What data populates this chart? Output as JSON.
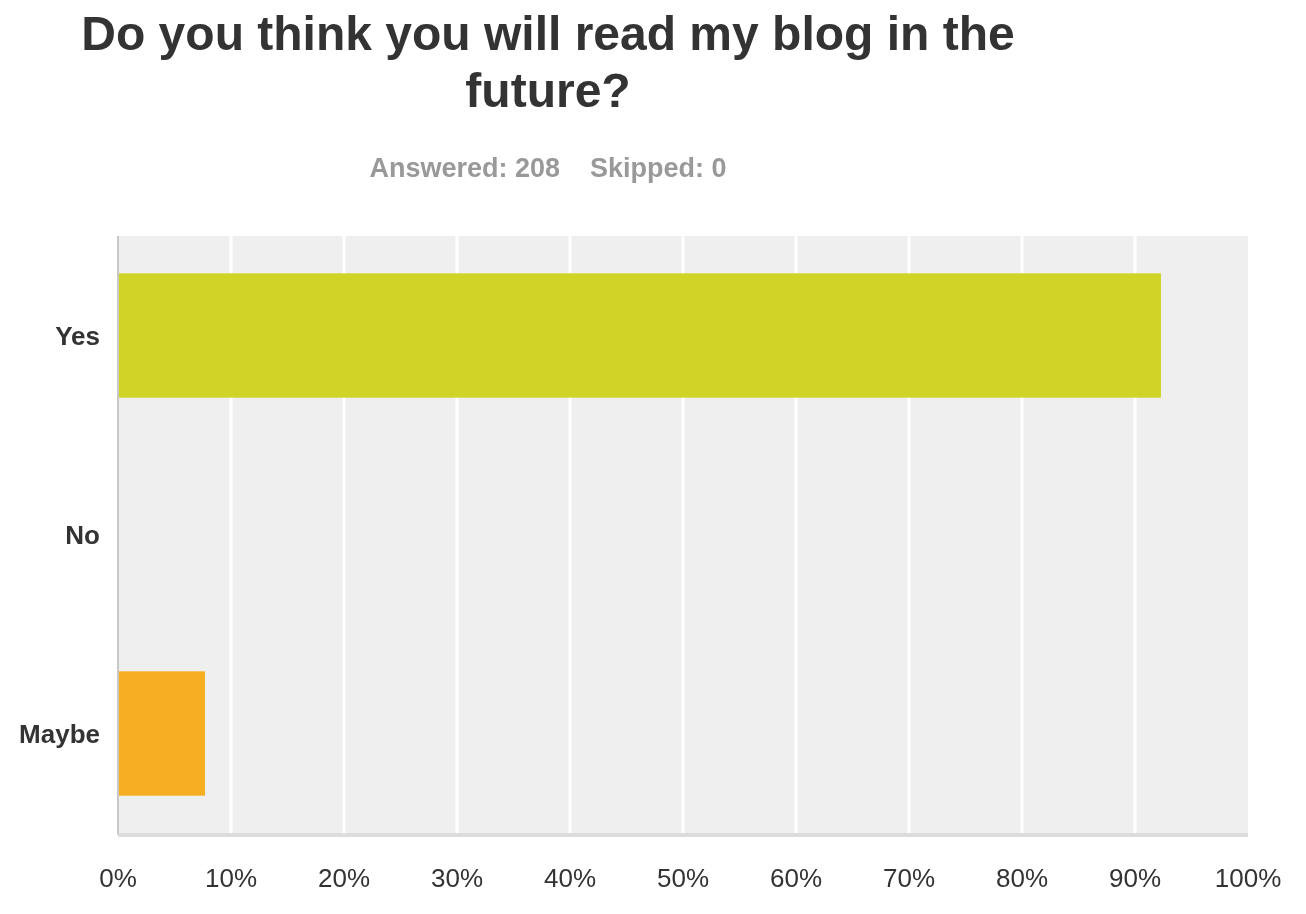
{
  "chart_data": {
    "type": "bar",
    "orientation": "horizontal",
    "title": "Do you think you will read my blog in the future?",
    "subtitle": "Answered: 208    Skipped: 0",
    "categories": [
      "Yes",
      "No",
      "Maybe"
    ],
    "values": [
      92.3,
      0,
      7.7
    ],
    "colors": [
      "#cfd427",
      null,
      "#f6af20"
    ],
    "xlim": [
      0,
      100
    ],
    "xticks": [
      {
        "value": 0,
        "label": "0%"
      },
      {
        "value": 10,
        "label": "10%"
      },
      {
        "value": 20,
        "label": "20%"
      },
      {
        "value": 30,
        "label": "30%"
      },
      {
        "value": 40,
        "label": "40%"
      },
      {
        "value": 50,
        "label": "50%"
      },
      {
        "value": 60,
        "label": "60%"
      },
      {
        "value": 70,
        "label": "70%"
      },
      {
        "value": 80,
        "label": "80%"
      },
      {
        "value": 90,
        "label": "90%"
      },
      {
        "value": 100,
        "label": "100%"
      }
    ],
    "grid": "x"
  }
}
